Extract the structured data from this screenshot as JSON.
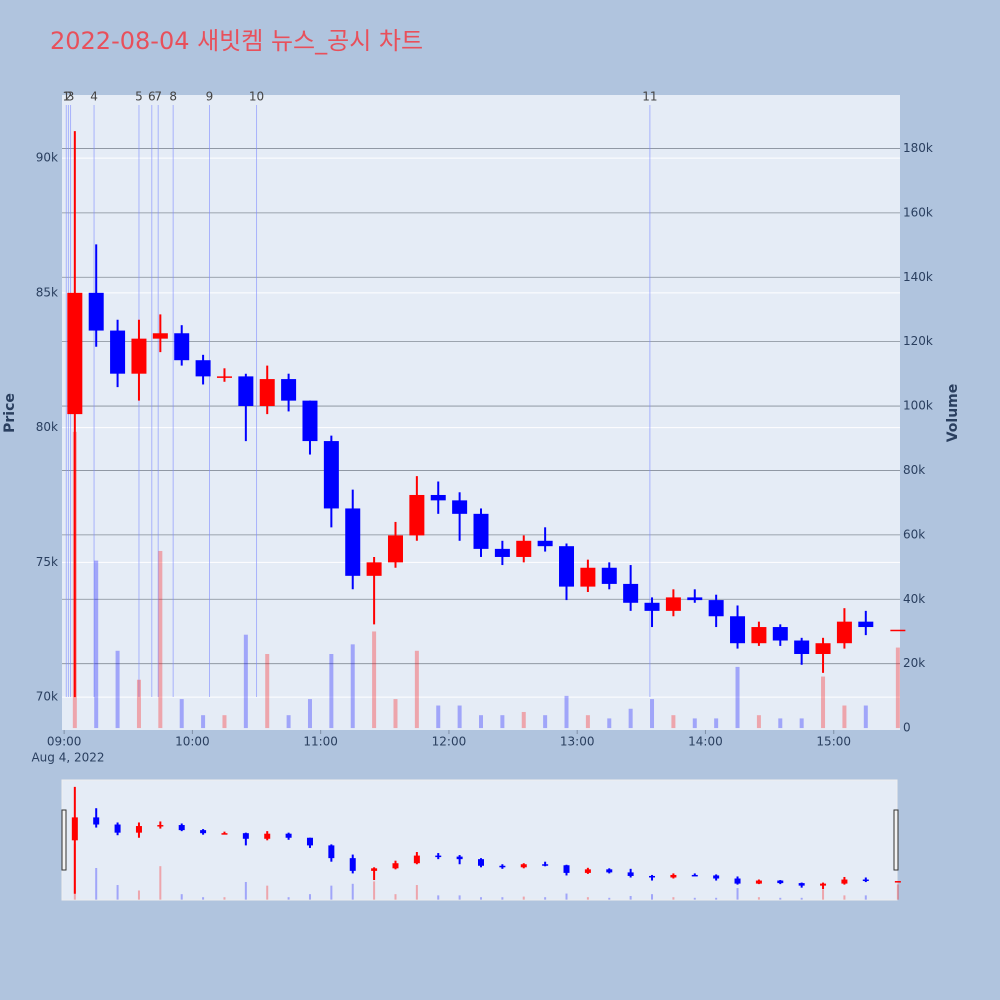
{
  "chart_data": {
    "type": "candlestick",
    "title": "2022-08-04 새빗켐 뉴스_공시 차트",
    "y_label": "Price",
    "y2_label": "Volume",
    "x_sublabel": "Aug 4, 2022",
    "x": [
      "2022-08-04 09:05",
      "2022-08-04 09:15",
      "2022-08-04 09:25",
      "2022-08-04 09:35",
      "2022-08-04 09:45",
      "2022-08-04 09:55",
      "2022-08-04 10:05",
      "2022-08-04 10:15",
      "2022-08-04 10:25",
      "2022-08-04 10:35",
      "2022-08-04 10:45",
      "2022-08-04 10:55",
      "2022-08-04 11:05",
      "2022-08-04 11:15",
      "2022-08-04 11:25",
      "2022-08-04 11:35",
      "2022-08-04 11:45",
      "2022-08-04 11:55",
      "2022-08-04 12:05",
      "2022-08-04 12:15",
      "2022-08-04 12:25",
      "2022-08-04 12:35",
      "2022-08-04 12:45",
      "2022-08-04 12:55",
      "2022-08-04 13:05",
      "2022-08-04 13:15",
      "2022-08-04 13:25",
      "2022-08-04 13:35",
      "2022-08-04 13:45",
      "2022-08-04 13:55",
      "2022-08-04 14:05",
      "2022-08-04 14:15",
      "2022-08-04 14:25",
      "2022-08-04 14:35",
      "2022-08-04 14:45",
      "2022-08-04 14:55",
      "2022-08-04 15:05",
      "2022-08-04 15:15",
      "2022-08-04 15:30"
    ],
    "open": [
      80500,
      85000,
      83600,
      82000,
      83300,
      83500,
      82500,
      81900,
      81900,
      80800,
      81800,
      81000,
      79500,
      77000,
      74500,
      75000,
      76000,
      77500,
      77300,
      76800,
      75500,
      75200,
      75800,
      75600,
      74100,
      74800,
      74200,
      73500,
      73200,
      73700,
      73600,
      73000,
      72000,
      72600,
      72100,
      71600,
      72000,
      72800,
      72500
    ],
    "high": [
      91000,
      86800,
      84000,
      84000,
      84200,
      83800,
      82700,
      82200,
      82000,
      82300,
      82000,
      81000,
      79700,
      77700,
      75200,
      76500,
      78200,
      78000,
      77600,
      77000,
      75800,
      76000,
      76300,
      75700,
      75100,
      75000,
      74900,
      73700,
      74000,
      74000,
      73800,
      73400,
      72800,
      72700,
      72200,
      72200,
      73300,
      73200,
      72500
    ],
    "low": [
      70000,
      83000,
      81500,
      81000,
      82800,
      82300,
      81600,
      81700,
      79500,
      80500,
      80600,
      79000,
      76300,
      74000,
      72700,
      74800,
      75800,
      76800,
      75800,
      75200,
      74900,
      75000,
      75400,
      73600,
      73900,
      74000,
      73200,
      72600,
      73000,
      73500,
      72600,
      71800,
      71900,
      71900,
      71200,
      70900,
      71800,
      72300,
      72500
    ],
    "close": [
      85000,
      83600,
      82000,
      83300,
      83500,
      82500,
      81900,
      81900,
      80800,
      81800,
      81000,
      79500,
      77000,
      74500,
      75000,
      76000,
      77500,
      77300,
      76800,
      75500,
      75200,
      75800,
      75600,
      74100,
      74800,
      74200,
      73500,
      73200,
      73700,
      73600,
      73000,
      72000,
      72600,
      72100,
      71600,
      72000,
      72800,
      72600,
      72500
    ],
    "volume": [
      92000,
      52000,
      24000,
      15000,
      55000,
      9000,
      4000,
      4000,
      29000,
      23000,
      4000,
      9000,
      23000,
      26000,
      30000,
      9000,
      24000,
      7000,
      7000,
      4000,
      4000,
      5000,
      4000,
      10000,
      4000,
      3000,
      6000,
      9000,
      4000,
      3000,
      3000,
      19000,
      4000,
      3000,
      3000,
      16000,
      7000,
      7000,
      25000
    ],
    "increasing_color": "#ff0000",
    "decreasing_color": "#0000ff",
    "xlim": [
      "2022-08-04 08:59",
      "2022-08-04 15:31"
    ],
    "xticks": [
      {
        "value": "2022-08-04 09:00",
        "label": "09:00"
      },
      {
        "value": "2022-08-04 10:00",
        "label": "10:00"
      },
      {
        "value": "2022-08-04 11:00",
        "label": "11:00"
      },
      {
        "value": "2022-08-04 12:00",
        "label": "12:00"
      },
      {
        "value": "2022-08-04 13:00",
        "label": "13:00"
      },
      {
        "value": "2022-08-04 14:00",
        "label": "14:00"
      },
      {
        "value": "2022-08-04 15:00",
        "label": "15:00"
      }
    ],
    "ylim": [
      68780,
      92340
    ],
    "yticks": [
      {
        "value": 70000,
        "label": "70k"
      },
      {
        "value": 75000,
        "label": "75k"
      },
      {
        "value": 80000,
        "label": "80k"
      },
      {
        "value": 85000,
        "label": "85k"
      },
      {
        "value": 90000,
        "label": "90k"
      }
    ],
    "y2lim": [
      -600,
      196600
    ],
    "y2ticks": [
      0,
      {
        "value": 20000,
        "label": "20k"
      },
      {
        "value": 40000,
        "label": "40k"
      },
      {
        "value": 60000,
        "label": "60k"
      },
      {
        "value": 80000,
        "label": "80k"
      },
      {
        "value": 100000,
        "label": "100k"
      },
      {
        "value": 120000,
        "label": "120k"
      },
      {
        "value": 140000,
        "label": "140k"
      },
      {
        "value": 160000,
        "label": "160k"
      },
      {
        "value": 180000,
        "label": "180k"
      }
    ],
    "news_markers": [
      {
        "label": "1",
        "x": "2022-08-04 09:01"
      },
      {
        "label": "2",
        "x": "2022-08-04 09:02"
      },
      {
        "label": "3",
        "x": "2022-08-04 09:03"
      },
      {
        "label": "4",
        "x": "2022-08-04 09:14"
      },
      {
        "label": "5",
        "x": "2022-08-04 09:35"
      },
      {
        "label": "6",
        "x": "2022-08-04 09:41"
      },
      {
        "label": "7",
        "x": "2022-08-04 09:44"
      },
      {
        "label": "8",
        "x": "2022-08-04 09:51"
      },
      {
        "label": "9",
        "x": "2022-08-04 10:08"
      },
      {
        "label": "10",
        "x": "2022-08-04 10:30"
      },
      {
        "label": "11",
        "x": "2022-08-04 13:34"
      }
    ],
    "rangeslider": true
  }
}
